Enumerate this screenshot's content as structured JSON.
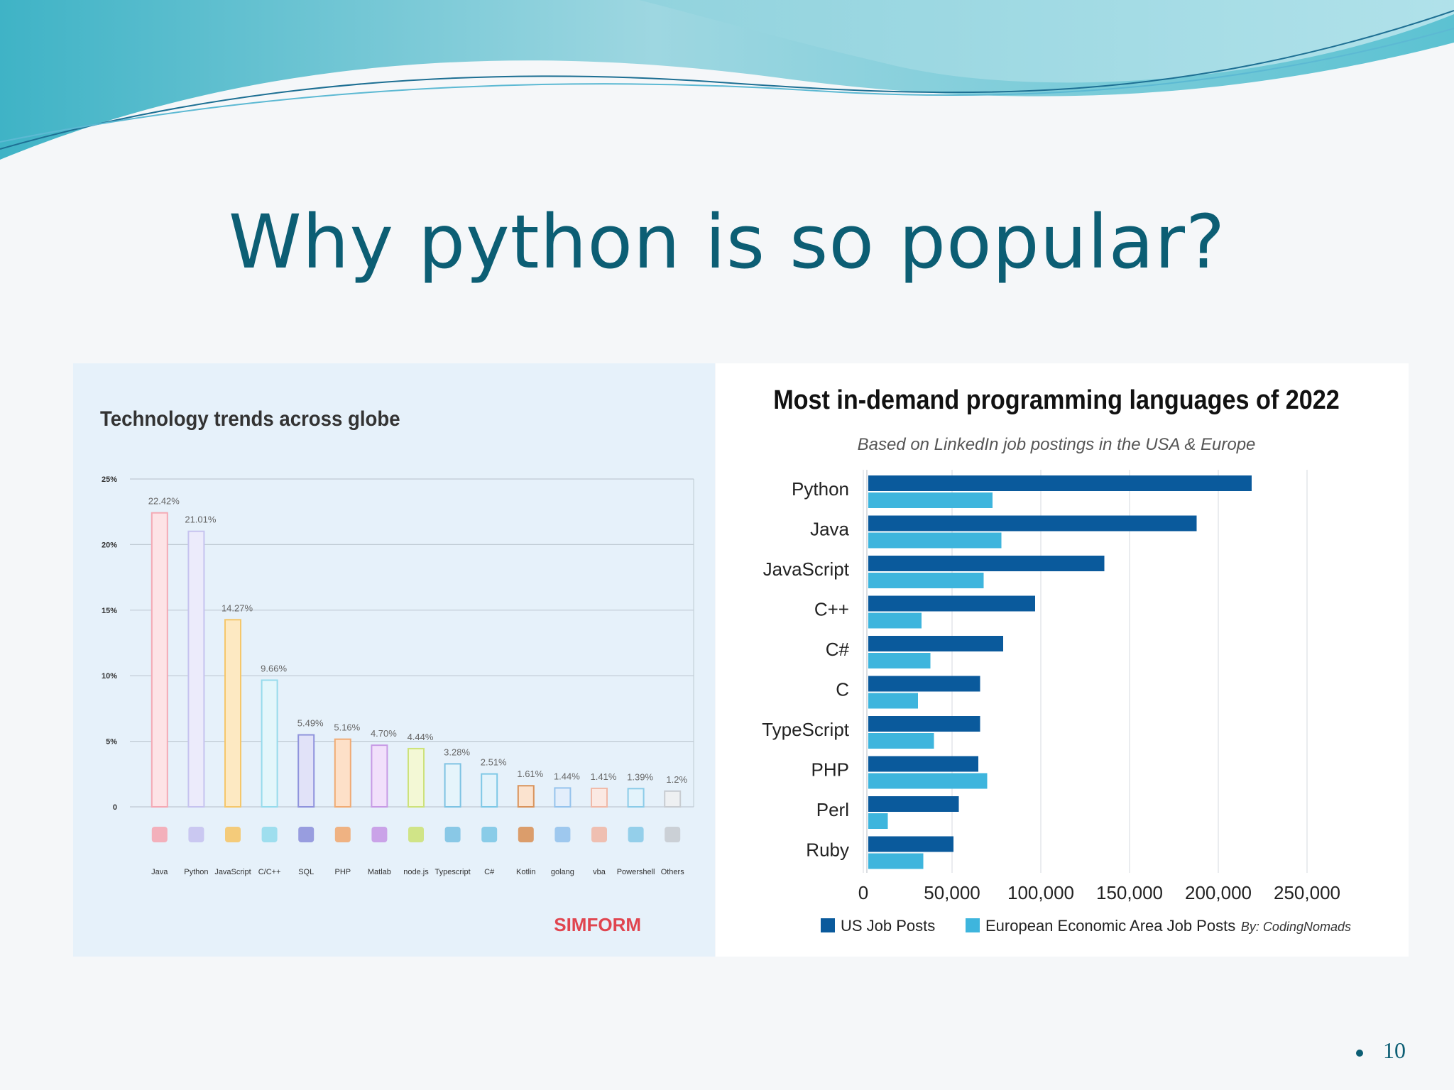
{
  "slide": {
    "title": "Why python is so popular?",
    "page_number": "10"
  },
  "chart_data": [
    {
      "type": "bar",
      "title": "Technology trends across globe",
      "categories": [
        "Java",
        "Python",
        "JavaScript",
        "C/C++",
        "SQL",
        "PHP",
        "Matlab",
        "node.js",
        "Typescript",
        "C#",
        "Kotlin",
        "golang",
        "vba",
        "Powershell",
        "Others"
      ],
      "values": [
        22.42,
        21.01,
        14.27,
        9.66,
        5.49,
        5.16,
        4.7,
        4.44,
        3.28,
        2.51,
        1.61,
        1.44,
        1.41,
        1.39,
        1.2
      ],
      "value_labels": [
        "22.42%",
        "21.01%",
        "14.27%",
        "9.66%",
        "5.49%",
        "5.16%",
        "4.70%",
        "4.44%",
        "3.28%",
        "2.51%",
        "1.61%",
        "1.44%",
        "1.41%",
        "1.39%",
        "1.2%"
      ],
      "y_ticks": [
        "0",
        "5%",
        "10%",
        "15%",
        "20%",
        "25%"
      ],
      "ylim": [
        0,
        25
      ],
      "grid": true,
      "icons": [
        "java-icon",
        "python-icon",
        "javascript-icon",
        "cpp-icon",
        "sql-icon",
        "php-icon",
        "matlab-icon",
        "nodejs-icon",
        "typescript-icon",
        "csharp-icon",
        "kotlin-icon",
        "golang-icon",
        "vba-icon",
        "powershell-icon",
        "others-icon"
      ],
      "bar_fills": [
        "#fde3e6",
        "#ecebfb",
        "#fde9c2",
        "#e3f6fb",
        "#e1e2f8",
        "#fde0c8",
        "#f1e0fb",
        "#f3f8d5",
        "#e5f4fb",
        "#e3f3fb",
        "#fbe3cf",
        "#e3eefb",
        "#fbe9e3",
        "#e3f3fb",
        "#eef0f2"
      ],
      "bar_strokes": [
        "#f4a9b4",
        "#c6c3ef",
        "#f5c76b",
        "#96dbec",
        "#8f93dc",
        "#f0ab74",
        "#c79ae5",
        "#cde27a",
        "#7ec3e3",
        "#7ec8e6",
        "#d9935b",
        "#96c3ec",
        "#f0b9a8",
        "#8bcbe8",
        "#c8ccd1"
      ],
      "watermark": "SIMFORM"
    },
    {
      "type": "bar",
      "orientation": "horizontal",
      "title": "Most in-demand programming languages of 2022",
      "subtitle": "Based on LinkedIn job postings in the USA & Europe",
      "categories": [
        "Python",
        "Java",
        "JavaScript",
        "C++",
        "C#",
        "C",
        "TypeScript",
        "PHP",
        "Perl",
        "Ruby"
      ],
      "series": [
        {
          "name": "US Job Posts",
          "color": "#0a5a9c",
          "values": [
            216000,
            185000,
            133000,
            94000,
            76000,
            63000,
            63000,
            62000,
            51000,
            48000
          ]
        },
        {
          "name": "European Economic Area Job Posts",
          "color": "#3eb5dd",
          "values": [
            70000,
            75000,
            65000,
            30000,
            35000,
            28000,
            37000,
            67000,
            11000,
            31000
          ]
        }
      ],
      "x_ticks": [
        "0",
        "50,000",
        "100,000",
        "150,000",
        "200,000",
        "250,000"
      ],
      "xlim": [
        0,
        250000
      ],
      "grid": true,
      "legend_position": "bottom",
      "credit": "By: CodingNomads"
    }
  ]
}
